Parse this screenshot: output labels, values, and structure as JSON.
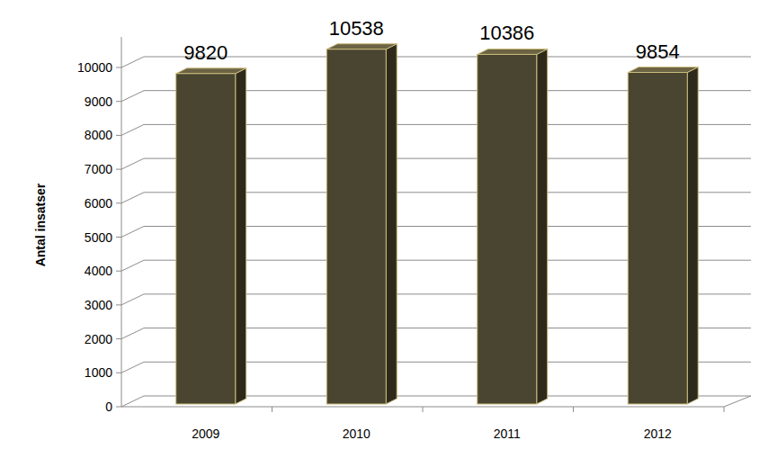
{
  "chart_data": {
    "type": "bar",
    "y_label": "Antal insatser",
    "categories": [
      "2009",
      "2010",
      "2011",
      "2012"
    ],
    "values": [
      9820,
      10538,
      10386,
      9854
    ],
    "color": "#4a4530",
    "ylim": [
      0,
      10900
    ],
    "yticks": [
      0,
      1000,
      2000,
      3000,
      4000,
      5000,
      6000,
      7000,
      8000,
      9000,
      10000
    ],
    "grid": true,
    "data_labels": true
  }
}
